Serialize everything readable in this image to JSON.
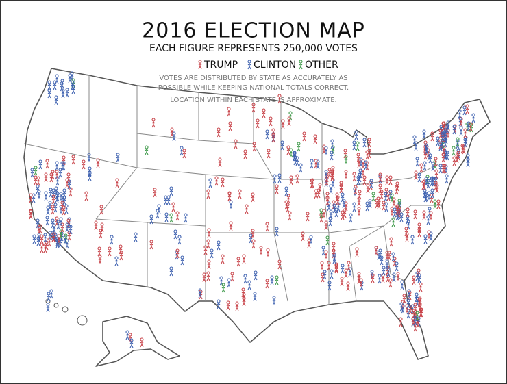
{
  "header": {
    "title": "2016 ELECTION MAP",
    "subtitle": "EACH FIGURE REPRESENTS 250,000 VOTES"
  },
  "legend": [
    {
      "label": "TRUMP",
      "color": "#c8444a"
    },
    {
      "label": "CLINTON",
      "color": "#3f62b0"
    },
    {
      "label": "OTHER",
      "color": "#3f9a4a"
    }
  ],
  "notes": [
    "VOTES ARE DISTRIBUTED BY STATE AS ACCURATELY AS",
    "POSSIBLE WHILE KEEPING NATIONAL TOTALS CORRECT.",
    "LOCATION WITHIN EACH STATE IS APPROXIMATE."
  ]
}
